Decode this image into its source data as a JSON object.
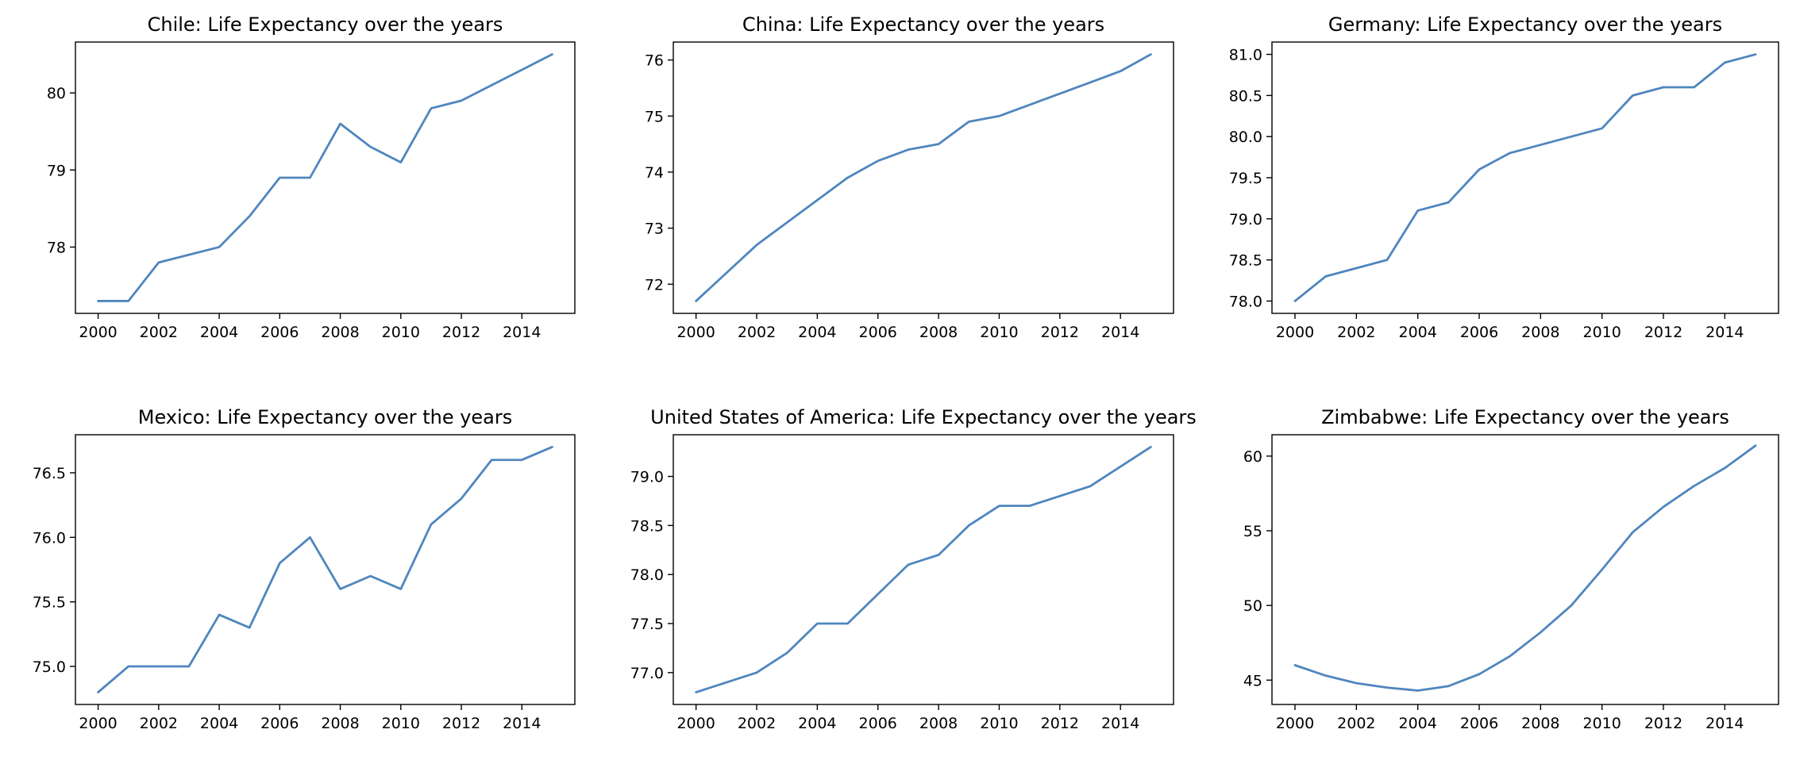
{
  "figure": {
    "line_color": "#4f86be"
  },
  "chart_data": [
    {
      "type": "line",
      "title": "Chile: Life Expectancy over the years",
      "xlabel": "",
      "ylabel": "",
      "grid": false,
      "xlim": [
        1999.25,
        2015.75
      ],
      "ylim": [
        77.14,
        80.66
      ],
      "xticks": [
        2000,
        2002,
        2004,
        2006,
        2008,
        2010,
        2012,
        2014
      ],
      "yticks": [
        78,
        79,
        80
      ],
      "ytick_labels": [
        "78",
        "79",
        "80"
      ],
      "x": [
        2000,
        2001,
        2002,
        2003,
        2004,
        2005,
        2006,
        2007,
        2008,
        2009,
        2010,
        2011,
        2012,
        2013,
        2014,
        2015
      ],
      "series": [
        {
          "values": [
            77.3,
            77.3,
            77.8,
            77.9,
            78.0,
            78.4,
            78.9,
            78.9,
            79.6,
            79.3,
            79.1,
            79.8,
            79.9,
            80.1,
            80.3,
            80.5
          ]
        }
      ]
    },
    {
      "type": "line",
      "title": "China: Life Expectancy over the years",
      "xlabel": "",
      "ylabel": "",
      "grid": false,
      "xlim": [
        1999.25,
        2015.75
      ],
      "ylim": [
        71.48,
        76.32
      ],
      "xticks": [
        2000,
        2002,
        2004,
        2006,
        2008,
        2010,
        2012,
        2014
      ],
      "yticks": [
        72,
        73,
        74,
        75,
        76
      ],
      "ytick_labels": [
        "72",
        "73",
        "74",
        "75",
        "76"
      ],
      "x": [
        2000,
        2001,
        2002,
        2003,
        2004,
        2005,
        2006,
        2007,
        2008,
        2009,
        2010,
        2011,
        2012,
        2013,
        2014,
        2015
      ],
      "series": [
        {
          "values": [
            71.7,
            72.2,
            72.7,
            73.1,
            73.5,
            73.9,
            74.2,
            74.4,
            74.5,
            74.9,
            75.0,
            75.2,
            75.4,
            75.6,
            75.8,
            76.1
          ]
        }
      ]
    },
    {
      "type": "line",
      "title": "Germany: Life Expectancy over the years",
      "xlabel": "",
      "ylabel": "",
      "grid": false,
      "xlim": [
        1999.25,
        2015.75
      ],
      "ylim": [
        77.85,
        81.15
      ],
      "xticks": [
        2000,
        2002,
        2004,
        2006,
        2008,
        2010,
        2012,
        2014
      ],
      "yticks": [
        78.0,
        78.5,
        79.0,
        79.5,
        80.0,
        80.5,
        81.0
      ],
      "ytick_labels": [
        "78.0",
        "78.5",
        "79.0",
        "79.5",
        "80.0",
        "80.5",
        "81.0"
      ],
      "x": [
        2000,
        2001,
        2002,
        2003,
        2004,
        2005,
        2006,
        2007,
        2008,
        2009,
        2010,
        2011,
        2012,
        2013,
        2014,
        2015
      ],
      "series": [
        {
          "values": [
            78.0,
            78.3,
            78.4,
            78.5,
            79.1,
            79.2,
            79.6,
            79.8,
            79.9,
            80.0,
            80.1,
            80.5,
            80.6,
            80.6,
            80.9,
            81.0
          ]
        }
      ]
    },
    {
      "type": "line",
      "title": "Mexico: Life Expectancy over the years",
      "xlabel": "",
      "ylabel": "",
      "grid": false,
      "xlim": [
        1999.25,
        2015.75
      ],
      "ylim": [
        74.705,
        76.795
      ],
      "xticks": [
        2000,
        2002,
        2004,
        2006,
        2008,
        2010,
        2012,
        2014
      ],
      "yticks": [
        75.0,
        75.5,
        76.0,
        76.5
      ],
      "ytick_labels": [
        "75.0",
        "75.5",
        "76.0",
        "76.5"
      ],
      "x": [
        2000,
        2001,
        2002,
        2003,
        2004,
        2005,
        2006,
        2007,
        2008,
        2009,
        2010,
        2011,
        2012,
        2013,
        2014,
        2015
      ],
      "series": [
        {
          "values": [
            74.8,
            75.0,
            75.0,
            75.0,
            75.4,
            75.3,
            75.8,
            76.0,
            75.6,
            75.7,
            75.6,
            76.1,
            76.3,
            76.6,
            76.6,
            76.7
          ]
        }
      ]
    },
    {
      "type": "line",
      "title": "United States of America: Life Expectancy over the years",
      "xlabel": "",
      "ylabel": "",
      "grid": false,
      "xlim": [
        1999.25,
        2015.75
      ],
      "ylim": [
        76.675,
        79.425
      ],
      "xticks": [
        2000,
        2002,
        2004,
        2006,
        2008,
        2010,
        2012,
        2014
      ],
      "yticks": [
        77.0,
        77.5,
        78.0,
        78.5,
        79.0
      ],
      "ytick_labels": [
        "77.0",
        "77.5",
        "78.0",
        "78.5",
        "79.0"
      ],
      "x": [
        2000,
        2001,
        2002,
        2003,
        2004,
        2005,
        2006,
        2007,
        2008,
        2009,
        2010,
        2011,
        2012,
        2013,
        2014,
        2015
      ],
      "series": [
        {
          "values": [
            76.8,
            76.9,
            77.0,
            77.2,
            77.5,
            77.5,
            77.8,
            78.1,
            78.2,
            78.5,
            78.7,
            78.7,
            78.8,
            78.9,
            79.1,
            79.3
          ]
        }
      ]
    },
    {
      "type": "line",
      "title": "Zimbabwe: Life Expectancy over the years",
      "xlabel": "",
      "ylabel": "",
      "grid": false,
      "xlim": [
        1999.25,
        2015.75
      ],
      "ylim": [
        43.37,
        61.43
      ],
      "xticks": [
        2000,
        2002,
        2004,
        2006,
        2008,
        2010,
        2012,
        2014
      ],
      "yticks": [
        45,
        50,
        55,
        60
      ],
      "ytick_labels": [
        "45",
        "50",
        "55",
        "60"
      ],
      "x": [
        2000,
        2001,
        2002,
        2003,
        2004,
        2005,
        2006,
        2007,
        2008,
        2009,
        2010,
        2011,
        2012,
        2013,
        2014,
        2015
      ],
      "series": [
        {
          "values": [
            46.0,
            45.3,
            44.8,
            44.5,
            44.3,
            44.6,
            45.4,
            46.6,
            48.2,
            50.0,
            52.4,
            54.9,
            56.6,
            58.0,
            59.2,
            60.7
          ]
        }
      ]
    }
  ]
}
